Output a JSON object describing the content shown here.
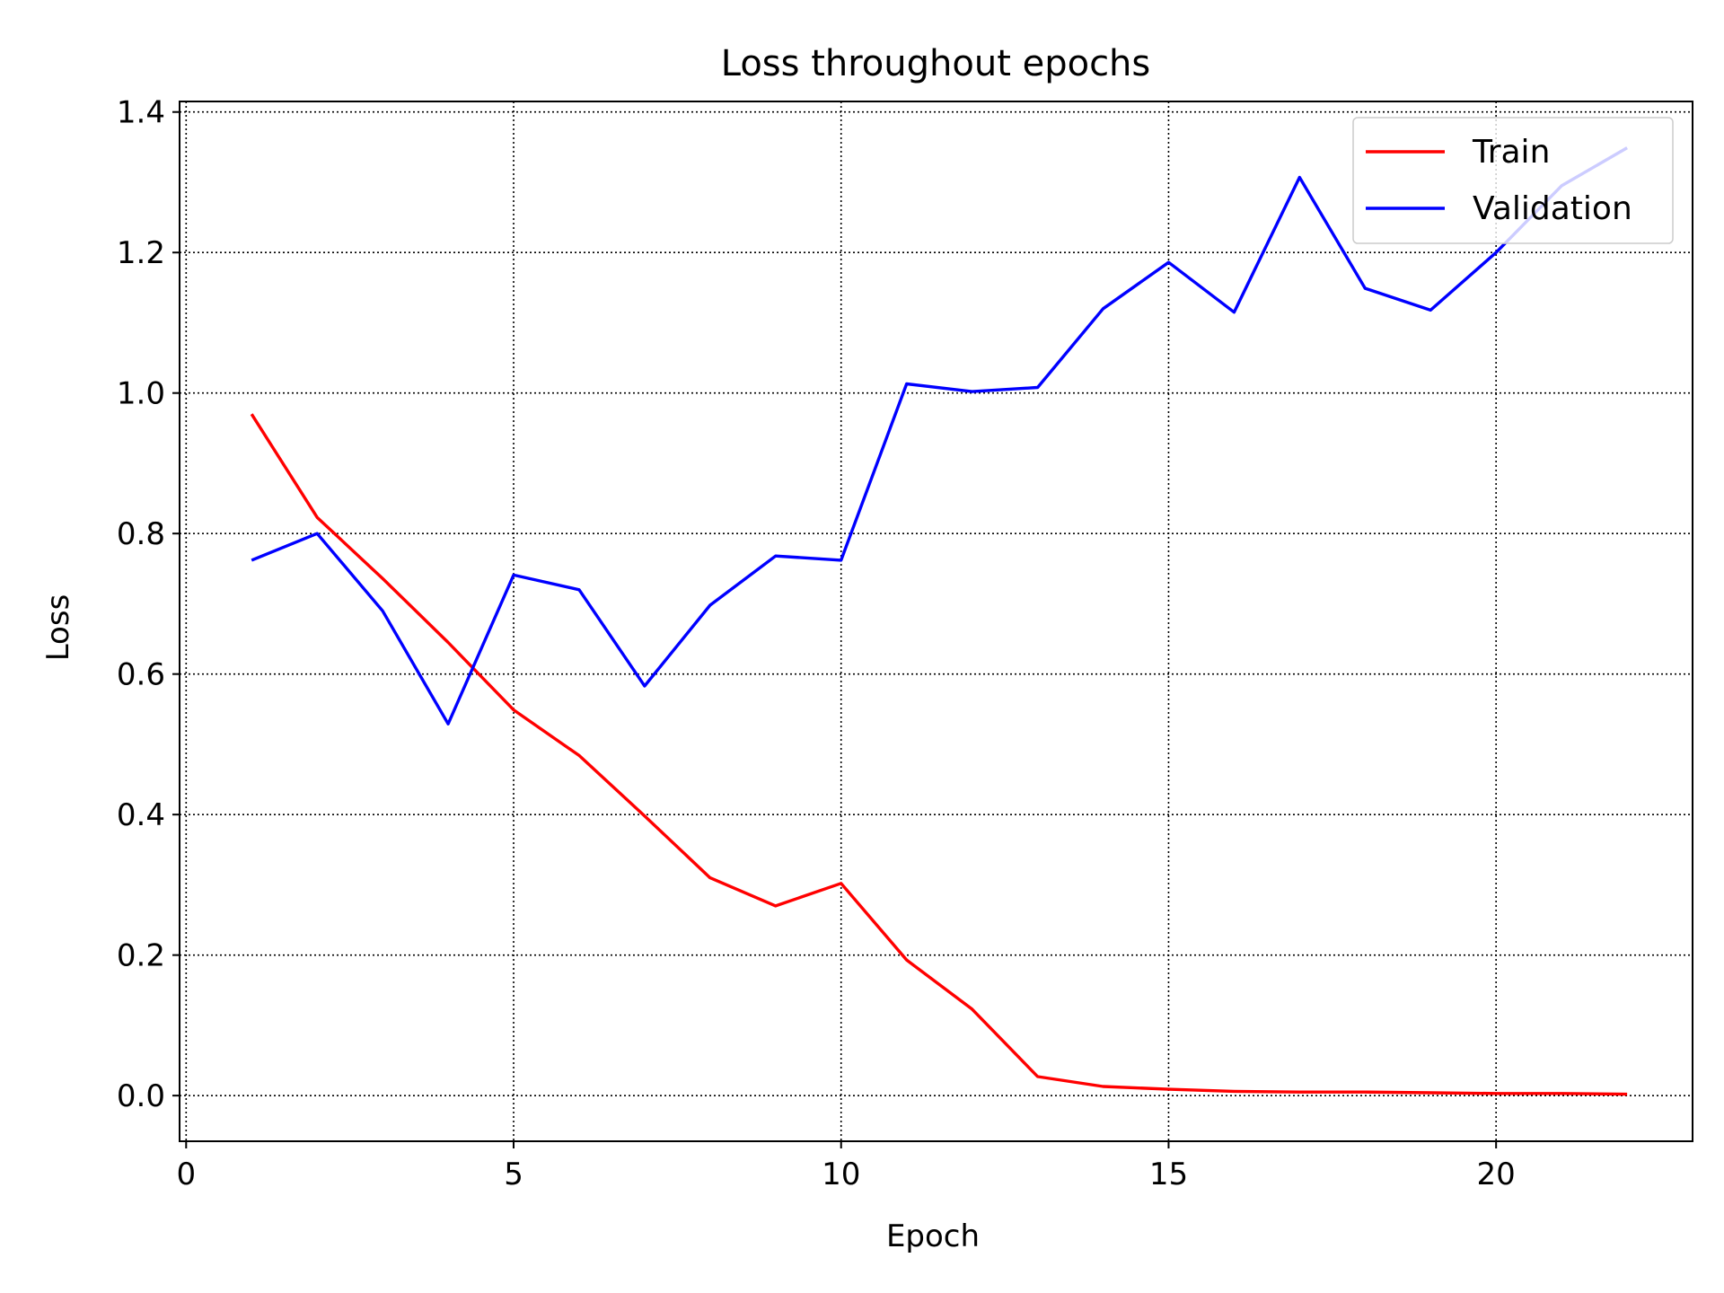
{
  "chart_data": {
    "type": "line",
    "title": "Loss throughout epochs",
    "xlabel": "Epoch",
    "ylabel": "Loss",
    "xlim": [
      -0.1,
      23.0
    ],
    "ylim": [
      -0.065,
      1.415
    ],
    "xticks": [
      0,
      5,
      10,
      15,
      20
    ],
    "yticks": [
      0.0,
      0.2,
      0.4,
      0.6,
      0.8,
      1.0,
      1.2,
      1.4
    ],
    "ytick_labels": [
      "0.0",
      "0.2",
      "0.4",
      "0.6",
      "0.8",
      "1.0",
      "1.2",
      "1.4"
    ],
    "grid": true,
    "legend": "top-right",
    "x": [
      1,
      2,
      3,
      4,
      5,
      6,
      7,
      8,
      9,
      10,
      11,
      12,
      13,
      14,
      15,
      16,
      17,
      18,
      19,
      20,
      21,
      22
    ],
    "series": [
      {
        "name": "Train",
        "color": "#ff0000",
        "values": [
          0.97,
          0.823,
          0.736,
          0.645,
          0.549,
          0.484,
          0.398,
          0.31,
          0.27,
          0.302,
          0.193,
          0.123,
          0.027,
          0.013,
          0.009,
          0.006,
          0.005,
          0.005,
          0.004,
          0.003,
          0.003,
          0.002
        ]
      },
      {
        "name": "Validation",
        "color": "#0000ff",
        "values": [
          0.762,
          0.8,
          0.69,
          0.529,
          0.741,
          0.72,
          0.583,
          0.698,
          0.768,
          0.762,
          1.013,
          1.002,
          1.008,
          1.12,
          1.186,
          1.115,
          1.307,
          1.149,
          1.118,
          1.2,
          1.295,
          1.349
        ]
      }
    ]
  }
}
